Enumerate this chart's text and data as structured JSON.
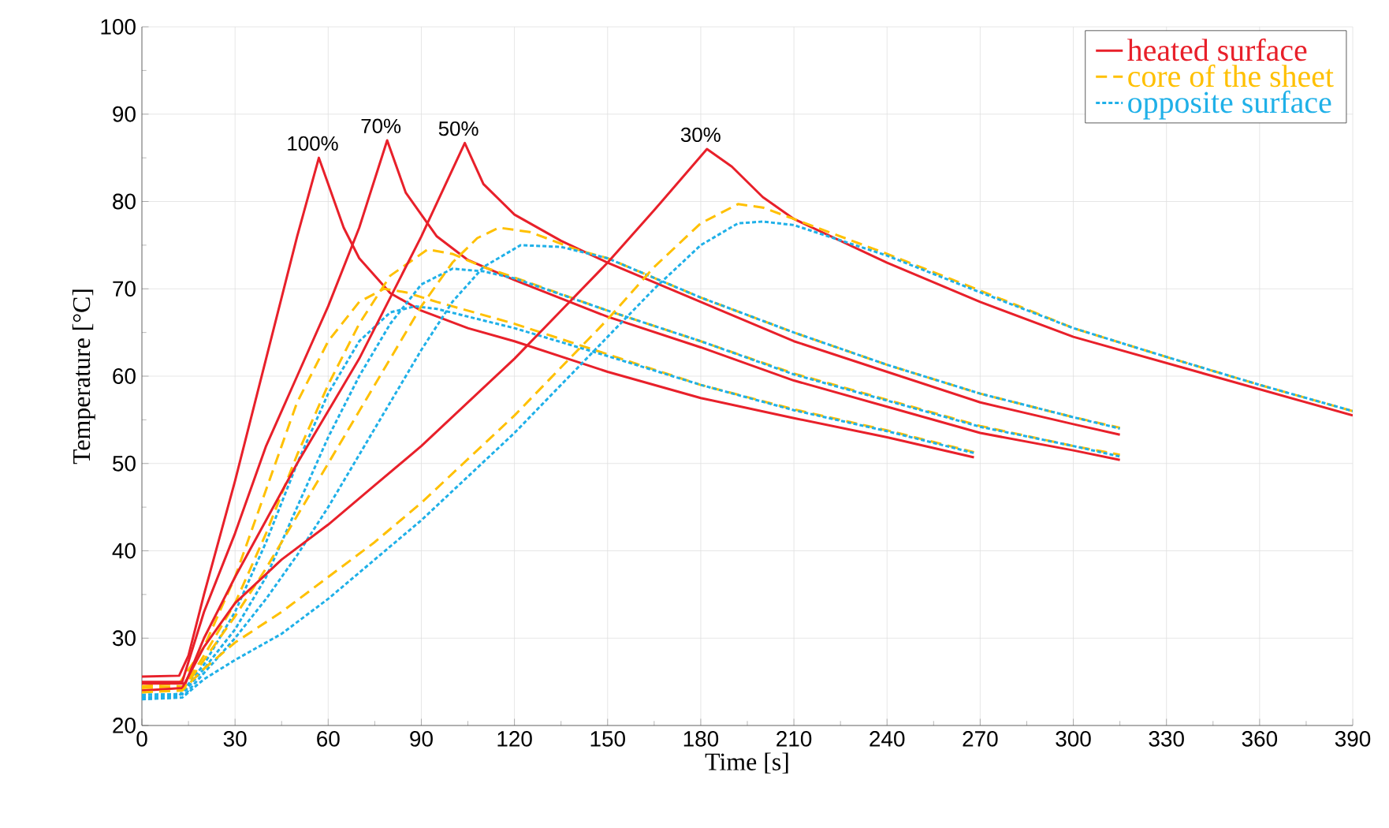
{
  "chart_data": {
    "type": "line",
    "xlabel": "Time [s]",
    "ylabel": "Temperature [°C]",
    "xlim": [
      0,
      390
    ],
    "xticks": [
      0,
      30,
      60,
      90,
      120,
      150,
      180,
      210,
      240,
      270,
      300,
      330,
      360,
      390
    ],
    "ylim": [
      20,
      100
    ],
    "yticks": [
      20,
      30,
      40,
      50,
      60,
      70,
      80,
      90,
      100
    ],
    "grid": true,
    "legend": "top right",
    "marker": "none",
    "annotations": [
      {
        "text": "100%",
        "x": 57,
        "y": 85
      },
      {
        "text": "70%",
        "x": 79,
        "y": 87
      },
      {
        "text": "50%",
        "x": 104,
        "y": 86.7
      },
      {
        "text": "30%",
        "x": 182,
        "y": 86
      }
    ],
    "series": [
      {
        "name": "heated surface",
        "color": "#e8202a",
        "line_style": "solid",
        "x": [
          0,
          12,
          15,
          20,
          30,
          40,
          50,
          57,
          60,
          65,
          70,
          80,
          90,
          105,
          120,
          150,
          180,
          210,
          240,
          268
        ],
        "values": [
          25.6,
          25.7,
          28,
          35,
          48,
          62,
          76,
          85,
          82,
          77,
          73.5,
          69.5,
          67.5,
          65.5,
          64,
          60.5,
          57.5,
          55.2,
          53,
          50.7
        ]
      },
      {
        "name": "core of the sheet",
        "color": "#ffc000",
        "line_style": "dashed",
        "x": [
          0,
          12,
          20,
          30,
          40,
          50,
          60,
          70,
          78,
          85,
          95,
          120,
          150,
          180,
          210,
          240,
          268
        ],
        "values": [
          24.5,
          24.8,
          29,
          37,
          47,
          57,
          64,
          68.5,
          70,
          69.6,
          68.5,
          66,
          62.5,
          59,
          56.2,
          53.8,
          51.3
        ]
      },
      {
        "name": "opposite  surface",
        "color": "#1fb0e8",
        "line_style": "dotted",
        "x": [
          0,
          12,
          20,
          30,
          40,
          50,
          60,
          70,
          80,
          88,
          95,
          120,
          150,
          180,
          210,
          240,
          268
        ],
        "values": [
          23.2,
          23.4,
          27,
          33,
          41,
          50,
          58,
          64,
          67.3,
          68,
          67.7,
          65.5,
          62.3,
          59,
          56.1,
          53.7,
          51.2
        ]
      },
      {
        "color": "#e8202a",
        "line_style": "solid",
        "x": [
          0,
          13,
          20,
          30,
          40,
          50,
          60,
          70,
          79,
          85,
          95,
          105,
          120,
          150,
          180,
          210,
          240,
          270,
          300,
          315
        ],
        "values": [
          25,
          25,
          33,
          42,
          52,
          60,
          68,
          77,
          87,
          81,
          76,
          73.3,
          71,
          66.8,
          63.3,
          59.5,
          56.5,
          53.5,
          51.5,
          50.4
        ]
      },
      {
        "color": "#ffc000",
        "line_style": "dashed",
        "x": [
          0,
          13,
          20,
          30,
          40,
          50,
          60,
          70,
          80,
          92,
          100,
          110,
          120,
          150,
          180,
          210,
          240,
          270,
          300,
          315
        ],
        "values": [
          24,
          24.2,
          28,
          34,
          42,
          51,
          59,
          66,
          71.5,
          74.5,
          74,
          72.5,
          71.3,
          67.5,
          64,
          60.3,
          57.3,
          54.3,
          52,
          51
        ]
      },
      {
        "color": "#1fb0e8",
        "line_style": "dotted",
        "x": [
          0,
          13,
          20,
          30,
          40,
          50,
          60,
          70,
          80,
          90,
          100,
          110,
          120,
          150,
          180,
          210,
          240,
          270,
          300,
          315
        ],
        "values": [
          23.5,
          23.6,
          26.5,
          31,
          37,
          45,
          53,
          60,
          66,
          70.5,
          72.3,
          72,
          71.2,
          67.5,
          64,
          60.2,
          57.2,
          54.2,
          52,
          50.8
        ]
      },
      {
        "color": "#e8202a",
        "line_style": "solid",
        "x": [
          0,
          14,
          20,
          30,
          40,
          50,
          60,
          70,
          80,
          90,
          104,
          110,
          120,
          135,
          150,
          180,
          210,
          240,
          270,
          300,
          315
        ],
        "values": [
          24.8,
          24.8,
          30,
          37,
          43.5,
          50,
          56,
          62,
          69,
          76,
          86.7,
          82,
          78.5,
          75.5,
          73,
          68.5,
          64,
          60.5,
          57,
          54.5,
          53.3
        ]
      },
      {
        "color": "#ffc000",
        "line_style": "dashed",
        "x": [
          0,
          14,
          20,
          30,
          40,
          50,
          60,
          70,
          80,
          90,
          100,
          108,
          115,
          125,
          140,
          150,
          180,
          210,
          240,
          270,
          300,
          315
        ],
        "values": [
          24.3,
          24.5,
          27.5,
          32.5,
          38,
          44,
          50,
          56,
          62,
          68,
          73,
          75.8,
          77,
          76.5,
          74.5,
          73.5,
          69,
          65,
          61.3,
          58,
          55.3,
          54.1
        ]
      },
      {
        "color": "#1fb0e8",
        "line_style": "dotted",
        "x": [
          0,
          14,
          20,
          30,
          40,
          50,
          60,
          70,
          80,
          90,
          100,
          110,
          122,
          135,
          150,
          180,
          210,
          240,
          270,
          300,
          315
        ],
        "values": [
          23.5,
          23.6,
          26,
          30,
          34.5,
          39.5,
          45,
          51,
          57,
          63,
          68.5,
          72.5,
          75,
          74.8,
          73.5,
          69,
          65,
          61.3,
          58,
          55.3,
          54
        ]
      },
      {
        "color": "#e8202a",
        "line_style": "solid",
        "x": [
          0,
          13,
          20,
          30,
          45,
          60,
          75,
          90,
          105,
          120,
          135,
          150,
          165,
          182,
          190,
          200,
          210,
          240,
          270,
          300,
          330,
          360,
          390
        ],
        "values": [
          24,
          24.3,
          29,
          34,
          39,
          43,
          47.5,
          52,
          57,
          62,
          67.5,
          73,
          79,
          86,
          84,
          80.5,
          78,
          73,
          68.5,
          64.5,
          61.5,
          58.5,
          55.5
        ]
      },
      {
        "color": "#ffc000",
        "line_style": "dashed",
        "x": [
          0,
          13,
          20,
          30,
          45,
          60,
          75,
          90,
          105,
          120,
          135,
          150,
          165,
          180,
          192,
          200,
          210,
          240,
          270,
          300,
          330,
          360,
          390
        ],
        "values": [
          23.8,
          24,
          26.5,
          29.5,
          33,
          37,
          41,
          45.5,
          50.5,
          55.5,
          61,
          66.5,
          72.5,
          77.5,
          79.7,
          79.3,
          78,
          74,
          69.8,
          65.5,
          62.2,
          59,
          56
        ]
      },
      {
        "color": "#1fb0e8",
        "line_style": "dotted",
        "x": [
          0,
          13,
          20,
          30,
          45,
          60,
          75,
          90,
          105,
          120,
          135,
          150,
          165,
          180,
          192,
          200,
          210,
          240,
          270,
          300,
          330,
          360,
          390
        ],
        "values": [
          23,
          23.2,
          25.3,
          27.5,
          30.5,
          34.5,
          39,
          43.5,
          48.5,
          53.5,
          59,
          64.5,
          70,
          75,
          77.5,
          77.7,
          77.3,
          73.8,
          69.6,
          65.5,
          62.2,
          59,
          56
        ]
      }
    ]
  }
}
